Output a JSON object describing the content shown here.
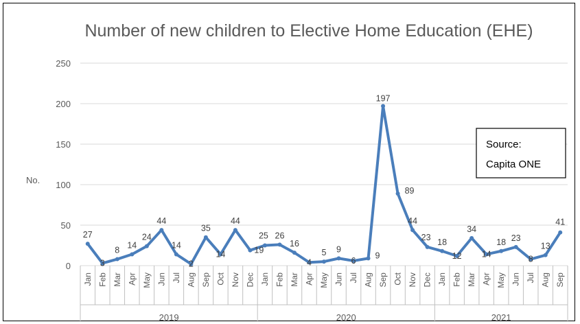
{
  "chart_data": {
    "type": "line",
    "title": "Number of new children to Elective Home Education (EHE)",
    "ylabel": "No.",
    "ylim": [
      0,
      250
    ],
    "yticks": [
      0,
      50,
      100,
      150,
      200,
      250
    ],
    "grid": true,
    "legend": "none",
    "line_color": "#4a7ebb",
    "x": [
      "Jan",
      "Feb",
      "Mar",
      "Apr",
      "May",
      "Jun",
      "Jul",
      "Aug",
      "Sep",
      "Oct",
      "Nov",
      "Dec",
      "Jan",
      "Feb",
      "Mar",
      "Apr",
      "May",
      "Jun",
      "Jul",
      "Aug",
      "Sep",
      "Oct",
      "Nov",
      "Dec",
      "Jan",
      "Feb",
      "Mar",
      "Apr",
      "May",
      "Jun",
      "Jul",
      "Aug",
      "Sep"
    ],
    "years": [
      {
        "label": "2019",
        "count": 12
      },
      {
        "label": "2020",
        "count": 12
      },
      {
        "label": "2021",
        "count": 9
      }
    ],
    "values": [
      27,
      3,
      8,
      14,
      24,
      44,
      14,
      2,
      35,
      14,
      44,
      19,
      25,
      26,
      16,
      4,
      5,
      9,
      6,
      9,
      197,
      89,
      44,
      23,
      18,
      12,
      34,
      14,
      18,
      23,
      8,
      13,
      41
    ],
    "annotation": {
      "line1": "Source:",
      "line2": "Capita ONE"
    }
  }
}
